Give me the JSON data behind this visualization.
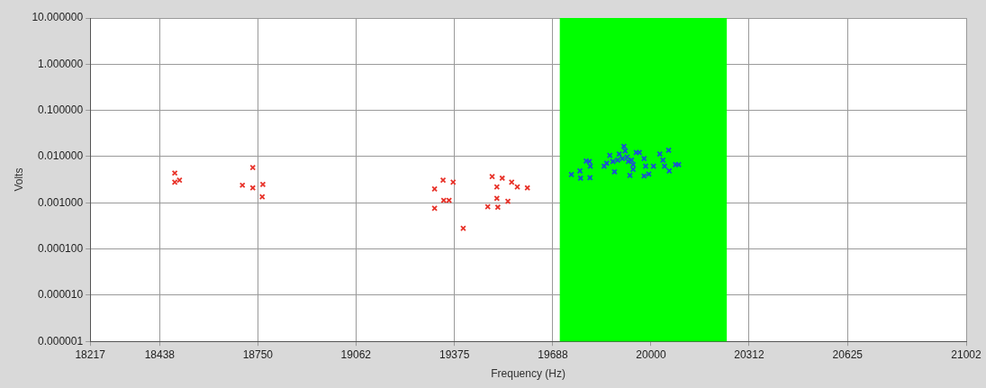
{
  "chart_data": {
    "type": "scatter",
    "xlabel": "Frequency (Hz)",
    "ylabel": "Volts",
    "xlim": [
      18217,
      21002
    ],
    "xticks": [
      18217,
      18438,
      18750,
      19062,
      19375,
      19688,
      20000,
      20312,
      20625,
      21002
    ],
    "ylim": [
      1e-06,
      10
    ],
    "yticks": [
      {
        "value": 1e-06,
        "label": "0.000001"
      },
      {
        "value": 1e-05,
        "label": "0.000010"
      },
      {
        "value": 0.0001,
        "label": "0.000100"
      },
      {
        "value": 0.001,
        "label": "0.001000"
      },
      {
        "value": 0.01,
        "label": "0.010000"
      },
      {
        "value": 0.1,
        "label": "0.100000"
      },
      {
        "value": 1,
        "label": "1.000000"
      },
      {
        "value": 10,
        "label": "10.000000"
      }
    ],
    "log": "y",
    "grid": true,
    "legend": false,
    "marker": "cross",
    "bands": [
      {
        "axis": "x",
        "from": 19710,
        "to": 20241,
        "color": "#00ff00"
      }
    ],
    "series": [
      {
        "color": "#e8332a",
        "x": [
          18486,
          18501,
          18486,
          18734,
          18701,
          18734,
          18766,
          18764,
          19339,
          19371,
          19312,
          19341,
          19358,
          19312,
          19403,
          19495,
          19527,
          19557,
          19575,
          19607,
          19510,
          19510,
          19545,
          19481,
          19513
        ],
        "values": [
          0.0044,
          0.0031,
          0.0028,
          0.0058,
          0.0024,
          0.0021,
          0.0025,
          0.00135,
          0.0031,
          0.0028,
          0.002,
          0.00113,
          0.00113,
          0.00076,
          0.00028,
          0.0037,
          0.0034,
          0.0028,
          0.0022,
          0.0021,
          0.0022,
          0.00125,
          0.00108,
          0.00082,
          0.0008
        ]
      },
      {
        "color": "#1a4fd6",
        "x": [
          19747,
          19774,
          19776,
          19806,
          19794,
          19804,
          19807,
          19851,
          19859,
          19869,
          19884,
          19894,
          19899,
          19914,
          19918,
          19924,
          19928,
          19938,
          19943,
          19933,
          19953,
          19963,
          19978,
          19983,
          19978,
          19993,
          20008,
          20028,
          20038,
          20043,
          20056,
          20058,
          20078,
          20088,
          19943,
          19909,
          19879
        ],
        "values": [
          0.0041,
          0.0049,
          0.0034,
          0.0035,
          0.008,
          0.0078,
          0.0062,
          0.0062,
          0.0072,
          0.0106,
          0.0047,
          0.0084,
          0.0114,
          0.0167,
          0.0133,
          0.0098,
          0.0078,
          0.0084,
          0.0067,
          0.0039,
          0.0123,
          0.0123,
          0.0091,
          0.0062,
          0.0038,
          0.0042,
          0.0062,
          0.0114,
          0.0084,
          0.0062,
          0.0137,
          0.0049,
          0.0067,
          0.0067,
          0.0053,
          0.0091,
          0.0078
        ]
      }
    ]
  }
}
